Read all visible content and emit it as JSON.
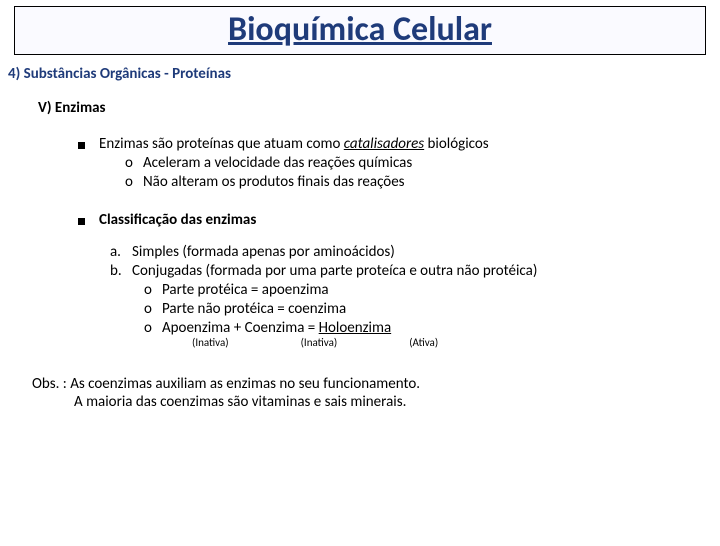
{
  "title": "Bioquímica Celular",
  "section": "4) Substâncias Orgânicas - Proteínas",
  "subsection": "V) Enzimas",
  "bullet1": {
    "text_pre": "Enzimas são proteínas que atuam como ",
    "text_em": "catalisadores",
    "text_post": " biológicos",
    "sub": [
      "Aceleram a velocidade das reações químicas",
      "Não alteram os produtos finais das reações"
    ]
  },
  "bullet2": "Classificação das enzimas",
  "letters": {
    "a": "Simples (formada apenas por aminoácidos)",
    "b": "Conjugadas (formada por uma parte proteíca e outra não protéica)",
    "b_sub": [
      "Parte protéica = apoenzima",
      "Parte não protéica = coenzima"
    ],
    "b_sub3_pre": "Apoenzima + Coenzima = ",
    "b_sub3_u": "Holoenzima"
  },
  "annot": {
    "a": "(Inativa)",
    "b": "(Inativa)",
    "c": "(Ativa)"
  },
  "obs": {
    "line1": "Obs. : As coenzimas auxiliam as enzimas no seu funcionamento.",
    "line2": "A maioria das coenzimas são vitaminas e sais minerais."
  },
  "colors": {
    "heading": "#1f3b7a",
    "text": "#000000",
    "background": "#ffffff"
  }
}
